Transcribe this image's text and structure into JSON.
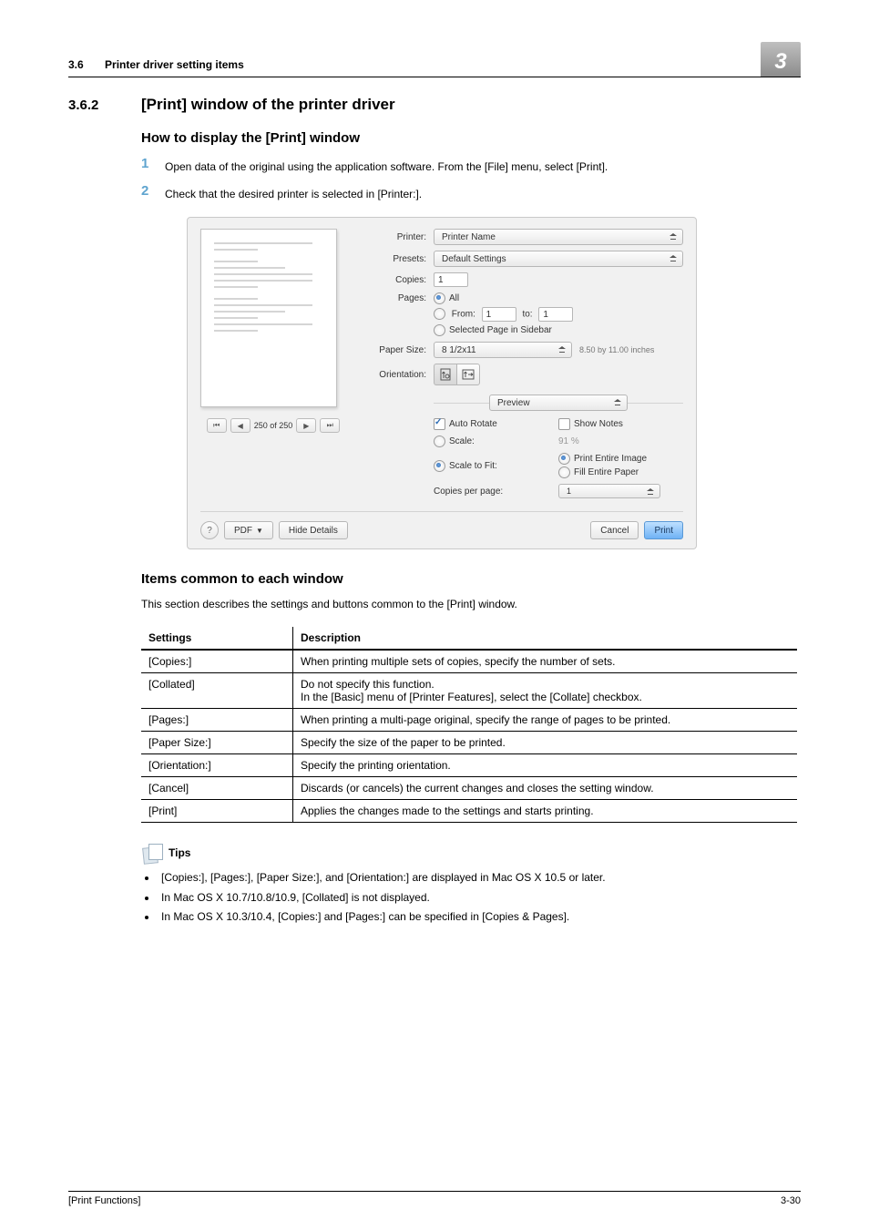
{
  "header": {
    "section_number": "3.6",
    "section_title": "Printer driver setting items",
    "chapter_badge": "3"
  },
  "h362": {
    "number": "3.6.2",
    "title": "[Print] window of the printer driver"
  },
  "howto_heading": "How to display the [Print] window",
  "steps": {
    "1": "Open data of the original using the application software. From the [File] menu, select [Print].",
    "2": "Check that the desired printer is selected in [Printer:]."
  },
  "items_heading": "Items common to each window",
  "items_intro": "This section describes the settings and buttons common to the [Print] window.",
  "table": {
    "head_settings": "Settings",
    "head_description": "Description",
    "rows": [
      {
        "s": "[Copies:]",
        "d": "When printing multiple sets of copies, specify the number of sets."
      },
      {
        "s": "[Collated]",
        "d": "Do not specify this function.\nIn the [Basic] menu of [Printer Features], select the [Collate] checkbox."
      },
      {
        "s": "[Pages:]",
        "d": "When printing a multi-page original, specify the range of pages to be printed."
      },
      {
        "s": "[Paper Size:]",
        "d": "Specify the size of the paper to be printed."
      },
      {
        "s": "[Orientation:]",
        "d": "Specify the printing orientation."
      },
      {
        "s": "[Cancel]",
        "d": "Discards (or cancels) the current changes and closes the setting window."
      },
      {
        "s": "[Print]",
        "d": "Applies the changes made to the settings and starts printing."
      }
    ]
  },
  "tips_label": "Tips",
  "tips": [
    "[Copies:], [Pages:], [Paper Size:], and [Orientation:] are displayed in Mac OS X 10.5 or later.",
    "In Mac OS X 10.7/10.8/10.9, [Collated] is not displayed.",
    "In Mac OS X 10.3/10.4, [Copies:] and [Pages:] can be specified in [Copies & Pages]."
  ],
  "footer": {
    "left": "[Print Functions]",
    "right": "3-30"
  },
  "dialog": {
    "printer_lbl": "Printer:",
    "printer_val": "Printer Name",
    "presets_lbl": "Presets:",
    "presets_val": "Default Settings",
    "copies_lbl": "Copies:",
    "copies_val": "1",
    "pages_lbl": "Pages:",
    "pages_all": "All",
    "pages_from_lbl": "From:",
    "pages_from_val": "1",
    "pages_to_lbl": "to:",
    "pages_to_val": "1",
    "pages_sel": "Selected Page in Sidebar",
    "papersize_lbl": "Paper Size:",
    "papersize_val": "8 1/2x11",
    "papersize_info": "8.50 by 11.00 inches",
    "orientation_lbl": "Orientation:",
    "section_val": "Preview",
    "auto_rotate": "Auto Rotate",
    "show_notes": "Show Notes",
    "scale_lbl": "Scale:",
    "scale_val": "91 %",
    "scale_fit_lbl": "Scale to Fit:",
    "print_entire": "Print Entire Image",
    "fill_paper": "Fill Entire Paper",
    "copies_pp_lbl": "Copies per page:",
    "copies_pp_val": "1",
    "pager_counter": "250 of 250",
    "help_btn": "?",
    "pdf_btn": "PDF",
    "hide_details": "Hide Details",
    "cancel_btn": "Cancel",
    "print_btn": "Print"
  }
}
